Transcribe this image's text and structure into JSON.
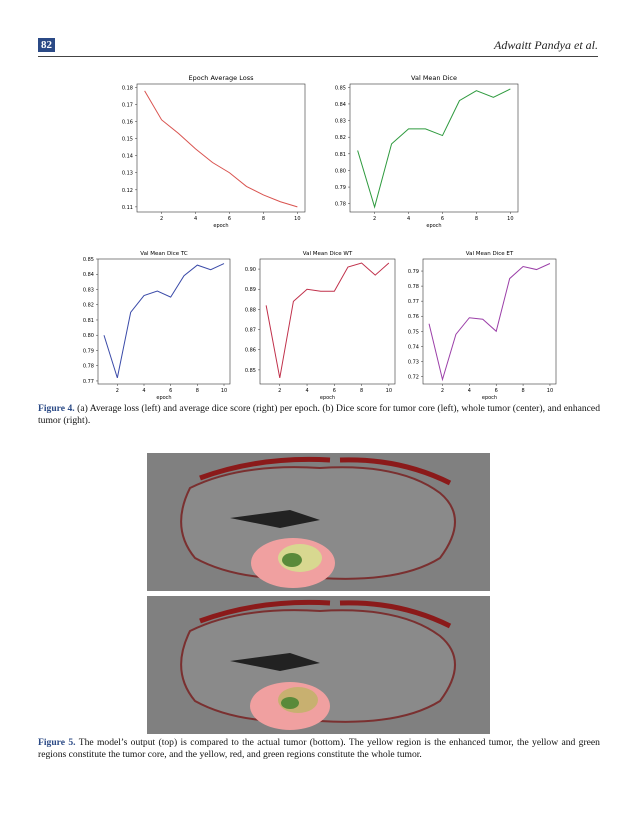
{
  "header": {
    "page_number": "82",
    "running_title": "Adwaitt Pandya et al."
  },
  "chart_data": [
    {
      "type": "line",
      "title": "Epoch Average Loss",
      "xlabel": "epoch",
      "x": [
        1,
        2,
        3,
        4,
        5,
        6,
        7,
        8,
        9,
        10
      ],
      "values": [
        0.178,
        0.161,
        0.153,
        0.144,
        0.136,
        0.13,
        0.122,
        0.117,
        0.113,
        0.11
      ],
      "color": "#d9534f",
      "xlim": [
        0.55,
        10.45
      ],
      "xticks": [
        2,
        4,
        6,
        8,
        10
      ],
      "ylim": [
        0.107,
        0.182
      ],
      "yticks": [
        0.11,
        0.12,
        0.13,
        0.14,
        0.15,
        0.16,
        0.17,
        0.18
      ]
    },
    {
      "type": "line",
      "title": "Val Mean Dice",
      "xlabel": "epoch",
      "x": [
        1,
        2,
        3,
        4,
        5,
        6,
        7,
        8,
        9,
        10
      ],
      "values": [
        0.812,
        0.778,
        0.816,
        0.825,
        0.825,
        0.821,
        0.842,
        0.848,
        0.844,
        0.849
      ],
      "color": "#2e9a3e",
      "xlim": [
        0.55,
        10.45
      ],
      "xticks": [
        2,
        4,
        6,
        8,
        10
      ],
      "ylim": [
        0.775,
        0.852
      ],
      "yticks": [
        0.78,
        0.79,
        {
          "value": 0.8,
          "label": "0.80"
        },
        0.81,
        0.82,
        0.83,
        0.84,
        0.85
      ]
    },
    {
      "type": "line",
      "title": "Val Mean Dice TC",
      "xlabel": "epoch",
      "x": [
        1,
        2,
        3,
        4,
        5,
        6,
        7,
        8,
        9,
        10
      ],
      "values": [
        0.8,
        0.772,
        0.815,
        0.826,
        0.829,
        0.825,
        0.839,
        0.846,
        0.843,
        0.847
      ],
      "color": "#3a4aa8",
      "xlim": [
        0.55,
        10.45
      ],
      "xticks": [
        2,
        4,
        6,
        8,
        10
      ],
      "ylim": [
        0.768,
        0.85
      ],
      "yticks": [
        0.77,
        0.78,
        0.79,
        {
          "value": 0.8,
          "label": "0.80"
        },
        0.81,
        0.82,
        0.83,
        0.84,
        0.85
      ]
    },
    {
      "type": "line",
      "title": "Val Mean Dice WT",
      "xlabel": "epoch",
      "x": [
        1,
        2,
        3,
        4,
        5,
        6,
        7,
        8,
        9,
        10
      ],
      "values": [
        0.882,
        0.846,
        0.884,
        0.89,
        0.889,
        0.889,
        0.901,
        0.903,
        0.897,
        0.903
      ],
      "color": "#c0304a",
      "xlim": [
        0.55,
        10.45
      ],
      "xticks": [
        2,
        4,
        6,
        8,
        10
      ],
      "ylim": [
        0.843,
        0.905
      ],
      "yticks": [
        0.85,
        0.86,
        0.87,
        0.88,
        0.89,
        {
          "value": 0.9,
          "label": "0.90"
        }
      ]
    },
    {
      "type": "line",
      "title": "Val Mean Dice ET",
      "xlabel": "epoch",
      "x": [
        1,
        2,
        3,
        4,
        5,
        6,
        7,
        8,
        9,
        10
      ],
      "values": [
        0.755,
        0.718,
        0.748,
        0.759,
        0.758,
        0.75,
        0.785,
        0.793,
        0.791,
        0.795
      ],
      "color": "#9b3fa8",
      "xlim": [
        0.55,
        10.45
      ],
      "xticks": [
        2,
        4,
        6,
        8,
        10
      ],
      "ylim": [
        0.715,
        0.798
      ],
      "yticks": [
        0.72,
        0.73,
        0.74,
        0.75,
        0.76,
        0.77,
        0.78,
        0.79
      ]
    }
  ],
  "captions": [
    {
      "label": "Figure 4.",
      "text": "(a) Average loss (left) and average dice score (right) per epoch. (b) Dice score for tumor core (left), whole tumor (center), and enhanced tumor (right)."
    },
    {
      "label": "Figure 5.",
      "text": "The model’s output (top) is compared to the actual tumor (bottom). The yellow region is the enhanced tumor, the yellow and green regions constitute the tumor core, and the yellow, red, and green regions constitute the whole tumor."
    }
  ]
}
